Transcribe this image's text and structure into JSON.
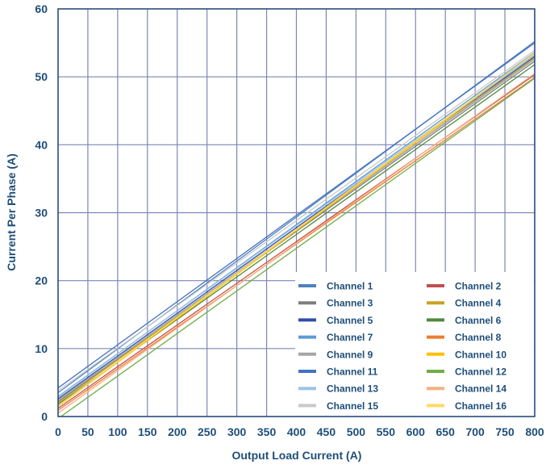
{
  "chart_data": {
    "type": "line",
    "title": "",
    "xlabel": "Output Load Current (A)",
    "ylabel": "Current Per Phase (A)",
    "xlim": [
      0,
      800
    ],
    "ylim": [
      0,
      60
    ],
    "xticks": [
      0,
      50,
      100,
      150,
      200,
      250,
      300,
      350,
      400,
      450,
      500,
      550,
      600,
      650,
      700,
      750,
      800
    ],
    "yticks": [
      0,
      10,
      20,
      30,
      40,
      50,
      60
    ],
    "grid": true,
    "legend_position": "bottom-right",
    "legend_columns": 2,
    "series": [
      {
        "name": "Channel 1",
        "color": "#4f81bd",
        "x": [
          0,
          800
        ],
        "y": [
          3.5,
          55.2
        ]
      },
      {
        "name": "Channel 2",
        "color": "#c0504d",
        "x": [
          0,
          800
        ],
        "y": [
          1.2,
          50.3
        ]
      },
      {
        "name": "Channel 3",
        "color": "#7f7f7f",
        "x": [
          0,
          800
        ],
        "y": [
          2.2,
          52.3
        ]
      },
      {
        "name": "Channel 4",
        "color": "#c9a227",
        "x": [
          0,
          800
        ],
        "y": [
          2.0,
          52.8
        ]
      },
      {
        "name": "Channel 5",
        "color": "#2e4fa8",
        "x": [
          0,
          800
        ],
        "y": [
          2.6,
          53.0
        ]
      },
      {
        "name": "Channel 6",
        "color": "#4e8a3a",
        "x": [
          0,
          800
        ],
        "y": [
          1.8,
          51.8
        ]
      },
      {
        "name": "Channel 7",
        "color": "#5b9bd5",
        "x": [
          0,
          800
        ],
        "y": [
          2.9,
          53.6
        ]
      },
      {
        "name": "Channel 8",
        "color": "#ed7d31",
        "x": [
          0,
          800
        ],
        "y": [
          0.9,
          49.9
        ]
      },
      {
        "name": "Channel 9",
        "color": "#a5a5a5",
        "x": [
          0,
          800
        ],
        "y": [
          2.4,
          52.6
        ]
      },
      {
        "name": "Channel 10",
        "color": "#ffc000",
        "x": [
          0,
          800
        ],
        "y": [
          1.5,
          53.3
        ]
      },
      {
        "name": "Channel 11",
        "color": "#4472c4",
        "x": [
          0,
          800
        ],
        "y": [
          4.2,
          55.0
        ]
      },
      {
        "name": "Channel 12",
        "color": "#70ad47",
        "x": [
          0,
          800
        ],
        "y": [
          -0.3,
          49.8
        ]
      },
      {
        "name": "Channel 13",
        "color": "#9dc3e6",
        "x": [
          0,
          800
        ],
        "y": [
          3.0,
          53.2
        ]
      },
      {
        "name": "Channel 14",
        "color": "#f4b183",
        "x": [
          0,
          800
        ],
        "y": [
          0.5,
          50.5
        ]
      },
      {
        "name": "Channel 15",
        "color": "#c9c9c9",
        "x": [
          0,
          800
        ],
        "y": [
          3.8,
          53.9
        ]
      },
      {
        "name": "Channel 16",
        "color": "#ffd966",
        "x": [
          0,
          800
        ],
        "y": [
          1.6,
          53.5
        ]
      }
    ]
  }
}
